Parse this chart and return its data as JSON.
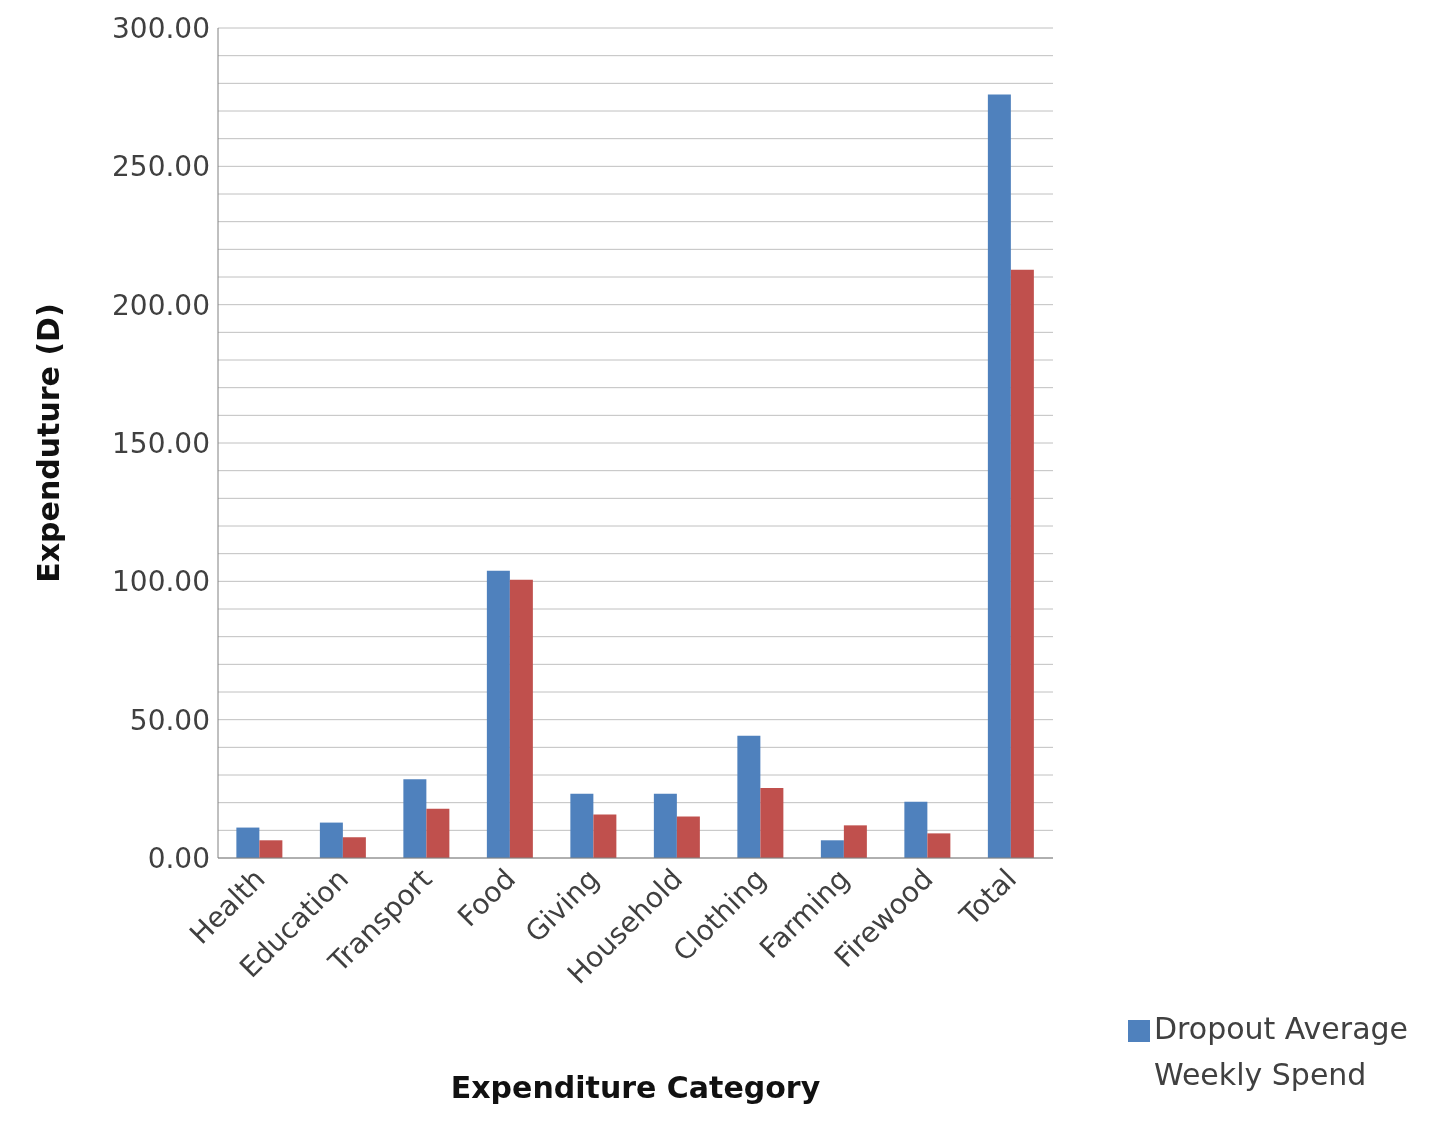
{
  "chart_data": {
    "type": "bar",
    "xlabel": "Expenditure Category",
    "ylabel": "Expenduture (D)",
    "categories": [
      "Health",
      "Education",
      "Transport",
      "Food",
      "Giving",
      "Household",
      "Clothing",
      "Farming",
      "Firewood",
      "Total"
    ],
    "series": [
      {
        "name": "Dropout Average Weekly Spend",
        "color": "#4f81bd",
        "values": [
          11,
          12.8,
          28.5,
          103.8,
          23.2,
          23.2,
          44.2,
          6.4,
          20.3,
          276
        ]
      },
      {
        "color": "#c0504d",
        "values": [
          6.4,
          7.5,
          17.8,
          100.6,
          15.7,
          15,
          25.3,
          11.8,
          8.9,
          212.6
        ]
      }
    ],
    "ylim": [
      0,
      300
    ],
    "yticks": [
      {
        "value": 0,
        "label": "0.00"
      },
      {
        "value": 10,
        "label": null
      },
      {
        "value": 20,
        "label": null
      },
      {
        "value": 30,
        "label": null
      },
      {
        "value": 40,
        "label": null
      },
      {
        "value": 50,
        "label": "50.00"
      },
      {
        "value": 60,
        "label": null
      },
      {
        "value": 70,
        "label": null
      },
      {
        "value": 80,
        "label": null
      },
      {
        "value": 90,
        "label": null
      },
      {
        "value": 100,
        "label": "100.00"
      },
      {
        "value": 110,
        "label": null
      },
      {
        "value": 120,
        "label": null
      },
      {
        "value": 130,
        "label": null
      },
      {
        "value": 140,
        "label": null
      },
      {
        "value": 150,
        "label": "150.00"
      },
      {
        "value": 160,
        "label": null
      },
      {
        "value": 170,
        "label": null
      },
      {
        "value": 180,
        "label": null
      },
      {
        "value": 190,
        "label": null
      },
      {
        "value": 200,
        "label": "200.00"
      },
      {
        "value": 210,
        "label": null
      },
      {
        "value": 220,
        "label": null
      },
      {
        "value": 230,
        "label": null
      },
      {
        "value": 240,
        "label": null
      },
      {
        "value": 250,
        "label": "250.00"
      },
      {
        "value": 260,
        "label": null
      },
      {
        "value": 270,
        "label": null
      },
      {
        "value": 280,
        "label": null
      },
      {
        "value": 290,
        "label": null
      },
      {
        "value": 300,
        "label": "300.00"
      }
    ],
    "grid": "y",
    "legend": "bottom right"
  }
}
